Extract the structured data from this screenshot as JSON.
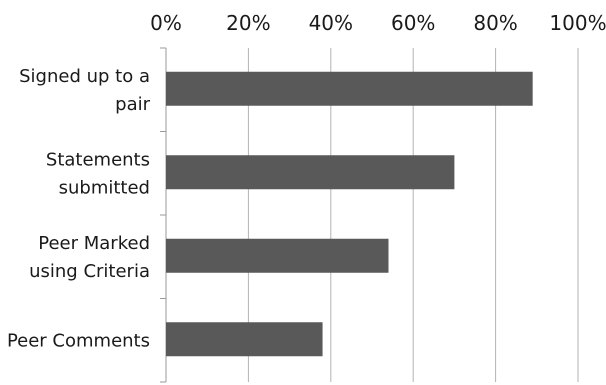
{
  "chart_data": {
    "type": "bar",
    "orientation": "horizontal",
    "title": "",
    "xlabel": "",
    "ylabel": "",
    "categories": [
      [
        "Signed up to a",
        "pair"
      ],
      [
        "Statements",
        "submitted"
      ],
      [
        "Peer Marked",
        "using Criteria"
      ],
      [
        "Peer Comments"
      ]
    ],
    "values": [
      0.89,
      0.7,
      0.54,
      0.38
    ],
    "xlim": [
      0,
      1
    ],
    "ticks": [
      {
        "value": 0.0,
        "label": "0%"
      },
      {
        "value": 0.2,
        "label": "20%"
      },
      {
        "value": 0.4,
        "label": "40%"
      },
      {
        "value": 0.6,
        "label": "60%"
      },
      {
        "value": 0.8,
        "label": "80%"
      },
      {
        "value": 1.0,
        "label": "100%"
      }
    ],
    "axis_position": "top",
    "grid": true,
    "legend": "none",
    "bar_color": "#595959",
    "grid_color": "#b3b3b3"
  }
}
